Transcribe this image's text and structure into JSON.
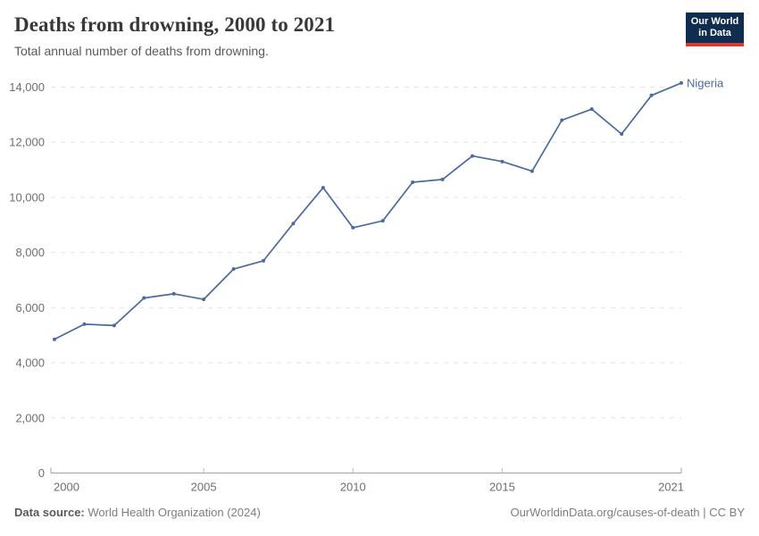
{
  "header": {
    "title": "Deaths from drowning, 2000 to 2021",
    "subtitle": "Total annual number of deaths from drowning.",
    "logo": {
      "line1": "Our World",
      "line2": "in Data"
    }
  },
  "footer": {
    "source_label": "Data source:",
    "source_value": " World Health Organization (2024)",
    "attribution": "OurWorldinData.org/causes-of-death | CC BY"
  },
  "colors": {
    "line": "#4C6A9C",
    "series_label": "#4C6A9C",
    "grid": "#e3e3e3",
    "axis": "#a3a3a3",
    "tick_label": "#6e6e6e",
    "title": "#383838",
    "subtitle": "#595959",
    "logo_bg": "#102d50",
    "logo_red": "#dc3a2e"
  },
  "chart_data": {
    "type": "line",
    "title": "Deaths from drowning, 2000 to 2021",
    "subtitle": "Total annual number of deaths from drowning.",
    "xlabel": "",
    "ylabel": "",
    "xlim": [
      2000,
      2021
    ],
    "ylim": [
      0,
      14500
    ],
    "x_ticks": [
      2000,
      2005,
      2010,
      2015,
      2021
    ],
    "y_ticks": [
      0,
      2000,
      4000,
      6000,
      8000,
      10000,
      12000,
      14000
    ],
    "grid": "horizontal-dashed",
    "legend_position": "end-of-line",
    "series": [
      {
        "name": "Nigeria",
        "color": "#4C6A9C",
        "x": [
          2000,
          2001,
          2002,
          2003,
          2004,
          2005,
          2006,
          2007,
          2008,
          2009,
          2010,
          2011,
          2012,
          2013,
          2014,
          2015,
          2016,
          2017,
          2018,
          2019,
          2020,
          2021
        ],
        "values": [
          4850,
          5400,
          5350,
          6350,
          6500,
          6300,
          7400,
          7700,
          9050,
          10350,
          8900,
          9150,
          10550,
          10650,
          11500,
          11300,
          10950,
          12800,
          13200,
          12300,
          13700,
          14150
        ]
      }
    ]
  }
}
